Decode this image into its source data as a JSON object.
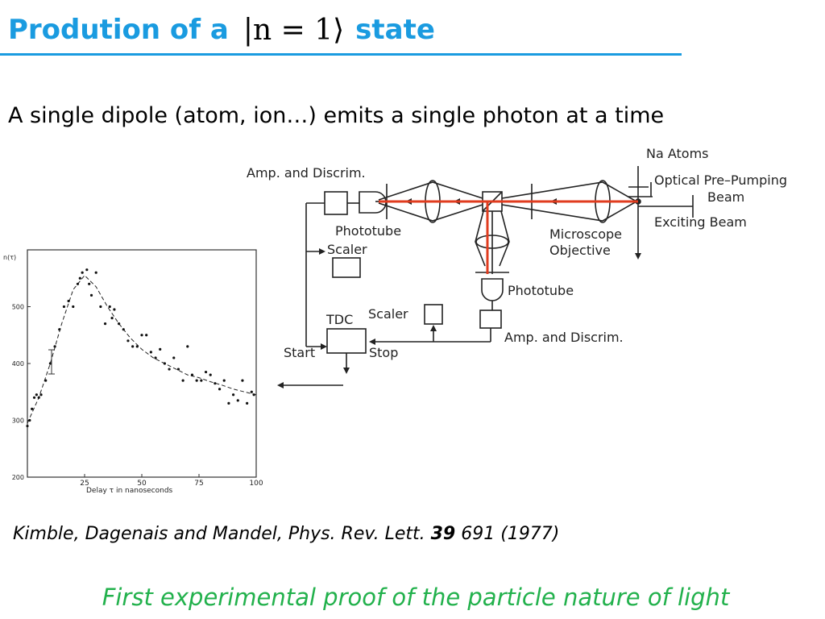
{
  "slide": {
    "title_prefix": "Prodution of a",
    "title_ket": "|n = 1⟩",
    "title_suffix": "state",
    "subtitle": "A single dipole (atom, ion…) emits a single photon at a time",
    "citation_text": "Kimble, Dagenais and Mandel, Phys. Rev. Lett.",
    "citation_volume": "39",
    "citation_page_year": "691 (1977)",
    "tagline": "First experimental proof of the particle nature of light"
  },
  "colors": {
    "title": "#1a9be0",
    "beam": "#e03c1f",
    "tagline": "#22b14c"
  },
  "apparatus": {
    "labels": {
      "amp_discrim_top": "Amp. and Discrim.",
      "phototube_left": "Phototube",
      "scaler_left": "Scaler",
      "na_atoms": "Na  Atoms",
      "optical_pre_pumping": "Optical Pre–Pumping",
      "beam": "Beam",
      "exciting_beam": "Exciting Beam",
      "microscope": "Microscope",
      "objective": "Objective",
      "phototube_bottom": "Phototube",
      "scaler_bottom": "Scaler",
      "tdc": "TDC",
      "amp_discrim_bottom": "Amp. and Discrim.",
      "start": "Start",
      "stop": "Stop"
    }
  },
  "chart_data": {
    "type": "scatter",
    "ylabel": "n(τ)",
    "xlabel": "Delay  τ  in  nanoseconds",
    "xlim": [
      0,
      100
    ],
    "ylim": [
      200,
      600
    ],
    "xticks": [
      25,
      50,
      75,
      100
    ],
    "yticks": [
      200,
      300,
      400,
      500
    ],
    "grid": false,
    "points": [
      [
        0,
        290
      ],
      [
        1,
        300
      ],
      [
        2,
        320
      ],
      [
        3,
        340
      ],
      [
        4,
        345
      ],
      [
        5,
        340
      ],
      [
        6,
        345
      ],
      [
        8,
        370
      ],
      [
        10,
        400
      ],
      [
        12,
        430
      ],
      [
        14,
        460
      ],
      [
        16,
        500
      ],
      [
        18,
        510
      ],
      [
        20,
        500
      ],
      [
        22,
        540
      ],
      [
        23,
        550
      ],
      [
        24,
        560
      ],
      [
        26,
        565
      ],
      [
        27,
        540
      ],
      [
        28,
        520
      ],
      [
        30,
        560
      ],
      [
        32,
        500
      ],
      [
        34,
        470
      ],
      [
        36,
        500
      ],
      [
        37,
        480
      ],
      [
        38,
        495
      ],
      [
        40,
        470
      ],
      [
        42,
        460
      ],
      [
        44,
        440
      ],
      [
        46,
        430
      ],
      [
        48,
        430
      ],
      [
        50,
        450
      ],
      [
        52,
        450
      ],
      [
        54,
        420
      ],
      [
        56,
        410
      ],
      [
        58,
        425
      ],
      [
        60,
        400
      ],
      [
        62,
        390
      ],
      [
        64,
        410
      ],
      [
        66,
        390
      ],
      [
        68,
        370
      ],
      [
        70,
        430
      ],
      [
        72,
        380
      ],
      [
        74,
        370
      ],
      [
        76,
        370
      ],
      [
        78,
        385
      ],
      [
        80,
        380
      ],
      [
        82,
        365
      ],
      [
        84,
        355
      ],
      [
        86,
        370
      ],
      [
        88,
        330
      ],
      [
        90,
        345
      ],
      [
        92,
        335
      ],
      [
        94,
        370
      ],
      [
        96,
        330
      ],
      [
        98,
        350
      ],
      [
        99,
        345
      ]
    ],
    "fit": [
      [
        0,
        295
      ],
      [
        5,
        340
      ],
      [
        10,
        400
      ],
      [
        15,
        470
      ],
      [
        20,
        530
      ],
      [
        25,
        555
      ],
      [
        30,
        535
      ],
      [
        35,
        500
      ],
      [
        40,
        470
      ],
      [
        45,
        445
      ],
      [
        50,
        425
      ],
      [
        55,
        410
      ],
      [
        60,
        400
      ],
      [
        65,
        390
      ],
      [
        70,
        380
      ],
      [
        75,
        375
      ],
      [
        80,
        368
      ],
      [
        85,
        362
      ],
      [
        90,
        355
      ],
      [
        95,
        350
      ],
      [
        100,
        345
      ]
    ]
  }
}
